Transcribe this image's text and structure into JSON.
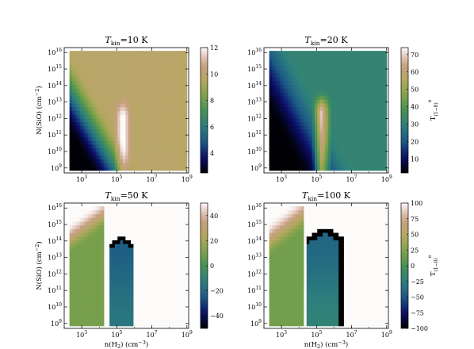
{
  "chart_data": {
    "type": "heatmap",
    "x_axis": {
      "label_main": "n(H",
      "label_sub": "2",
      "label_unit": ") (cm",
      "label_exp": "−3",
      "label_close": ")",
      "scale": "log",
      "range_log10": [
        2,
        9.1
      ],
      "ticks": [
        {
          "base": "10",
          "exp": "3",
          "log10": 3
        },
        {
          "base": "10",
          "exp": "5",
          "log10": 5
        },
        {
          "base": "10",
          "exp": "7",
          "log10": 7
        },
        {
          "base": "10",
          "exp": "9",
          "log10": 9
        }
      ]
    },
    "y_axis": {
      "label_main": "N(SiO) (cm",
      "label_exp": "−2",
      "label_close": ")",
      "scale": "log",
      "range_log10": [
        8.7,
        16.3
      ],
      "ticks": [
        {
          "base": "10",
          "exp": "9",
          "log10": 9
        },
        {
          "base": "10",
          "exp": "10",
          "log10": 10
        },
        {
          "base": "10",
          "exp": "11",
          "log10": 11
        },
        {
          "base": "10",
          "exp": "12",
          "log10": 12
        },
        {
          "base": "10",
          "exp": "13",
          "log10": 13
        },
        {
          "base": "10",
          "exp": "14",
          "log10": 14
        },
        {
          "base": "10",
          "exp": "15",
          "log10": 15
        },
        {
          "base": "10",
          "exp": "16",
          "log10": 16
        }
      ]
    },
    "colorbar_label": {
      "main": "T",
      "sub": "(1−0)",
      "sup": "e"
    },
    "colormap": "gist_earth",
    "panels": [
      {
        "title_main": "T",
        "title_sub": "kin",
        "title_rest": "=10 K",
        "model": "cold",
        "clim": [
          2.5,
          12
        ],
        "colorbar_ticks": [
          4,
          6,
          8,
          10,
          12
        ],
        "show_xlabel": false,
        "show_ylabel": true,
        "show_cblabel": false
      },
      {
        "title_main": "T",
        "title_sub": "kin",
        "title_rest": "=20 K",
        "model": "warm",
        "clim": [
          2,
          74
        ],
        "colorbar_ticks": [
          10,
          20,
          30,
          40,
          50,
          60,
          70
        ],
        "show_xlabel": false,
        "show_ylabel": false,
        "show_cblabel": true
      },
      {
        "title_main": "T",
        "title_sub": "kin",
        "title_rest": "=50 K",
        "model": "maser50",
        "clim": [
          -50,
          50
        ],
        "colorbar_ticks": [
          -40,
          -20,
          0,
          20,
          40
        ],
        "show_xlabel": true,
        "show_ylabel": true,
        "show_cblabel": false
      },
      {
        "title_main": "T",
        "title_sub": "kin",
        "title_rest": "=100 K",
        "model": "maser100",
        "clim": [
          -100,
          100
        ],
        "colorbar_ticks": [
          -100,
          -75,
          -50,
          -25,
          0,
          25,
          50,
          75,
          100
        ],
        "show_xlabel": true,
        "show_ylabel": false,
        "show_cblabel": true
      }
    ]
  }
}
